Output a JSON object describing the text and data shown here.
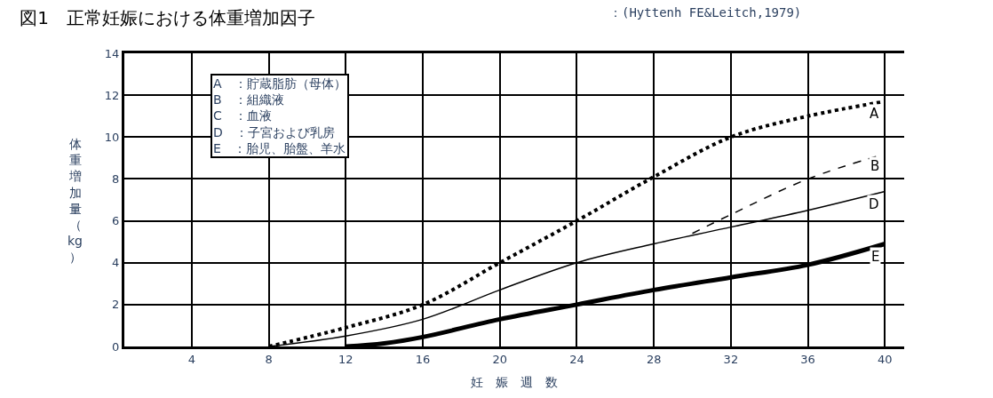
{
  "chart_data": {
    "type": "line",
    "title": "図1　正常妊娠における体重増加因子",
    "xlabel": "妊　娠　週　数",
    "ylabel": "体重増加量（kg）",
    "annotations": [
      "：(Hyttenh FE&Leitch,1979)",
      "A　：貯蔵脂肪（母体）",
      "B　：組織液",
      "C　：血液",
      "D　：子宮および乳房",
      "E　：胎児、胎盤、羊水"
    ],
    "xlim": [
      0.5,
      41
    ],
    "xticks": [
      4,
      8,
      12,
      16,
      20,
      24,
      28,
      32,
      36,
      40
    ],
    "ylim": [
      0,
      14
    ],
    "yticks": [
      0,
      2,
      4,
      6,
      8,
      10,
      12,
      14
    ],
    "grid": true,
    "legend": false,
    "series": [
      {
        "name": "A",
        "color": "#000000",
        "line_style": "dotted",
        "x": [
          8,
          12,
          16,
          20,
          24,
          28,
          32,
          36,
          40
        ],
        "values": [
          0,
          0.9,
          2.0,
          4.0,
          6.0,
          8.1,
          10.0,
          11.0,
          11.7
        ]
      },
      {
        "name": "B",
        "color": "#000000",
        "line_style": "dashed",
        "x": [
          30,
          32,
          36,
          40
        ],
        "values": [
          5.4,
          6.3,
          8.0,
          9.2
        ]
      },
      {
        "name": "D",
        "color": "#000000",
        "line_style": "solid",
        "x": [
          8,
          12,
          16,
          20,
          24,
          28,
          32,
          36,
          40
        ],
        "values": [
          0,
          0.5,
          1.3,
          2.7,
          4.0,
          4.9,
          5.7,
          6.5,
          7.4
        ]
      },
      {
        "name": "E",
        "color": "#000000",
        "line_style": "solid",
        "x": [
          12,
          14,
          16,
          20,
          24,
          28,
          32,
          36,
          40
        ],
        "values": [
          0,
          0.15,
          0.45,
          1.3,
          2.0,
          2.7,
          3.3,
          3.9,
          4.9
        ]
      }
    ]
  }
}
